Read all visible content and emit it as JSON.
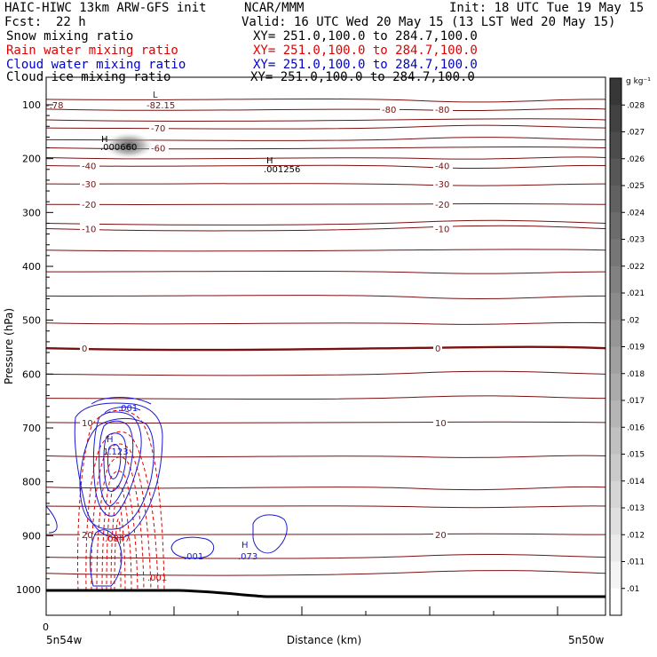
{
  "header": {
    "model": "HAIC-HIWC 13km ARW-GFS init",
    "org": "NCAR/MMM",
    "init": "Init: 18 UTC Tue 19 May 15",
    "fcst_label": "Fcst:",
    "fcst_value": "22 h",
    "valid": "Valid: 16 UTC Wed 20 May 15 (13 LST Wed 20 May 15)"
  },
  "fields": [
    {
      "name": "Snow mixing ratio",
      "xy": "XY= 251.0,100.0 to 284.7,100.0",
      "color": "#000000"
    },
    {
      "name": "Rain water mixing ratio",
      "xy": "XY= 251.0,100.0 to 284.7,100.0",
      "color": "#e00000"
    },
    {
      "name": "Cloud water mixing ratio",
      "xy": "XY= 251.0,100.0 to 284.7,100.0",
      "color": "#0000cc"
    },
    {
      "name": "Cloud ice mixing ratio",
      "xy": "XY= 251.0,100.0 to 284.7,100.0",
      "color": "#000000"
    }
  ],
  "colors": {
    "temperature": "#7a1010",
    "cloud_water": "#1a1ad0",
    "rain": "#e00000",
    "ground": "#000000"
  },
  "chart_data": {
    "type": "cross-section",
    "ylabel": "Pressure (hPa)",
    "xlabel": "Distance (km)",
    "y_ticks": [
      "100",
      "200",
      "300",
      "400",
      "500",
      "600",
      "700",
      "800",
      "900",
      "1000"
    ],
    "x_tick_zero": "0",
    "x_start_label": "5n54w",
    "x_end_label": "5n50w",
    "ylim": [
      1050,
      85
    ],
    "ground_pressure": {
      "left": 1000,
      "right": 1010
    },
    "isotherms": [
      {
        "p": 90,
        "labels": []
      },
      {
        "p": 108,
        "labels": [
          "-80",
          "-80"
        ]
      },
      {
        "p": 128,
        "labels": []
      },
      {
        "p": 143,
        "labels": [
          "-70"
        ]
      },
      {
        "p": 165,
        "labels": []
      },
      {
        "p": 180,
        "labels": [
          "-60"
        ]
      },
      {
        "p": 198,
        "labels": []
      },
      {
        "p": 213,
        "labels": [
          "-40",
          "-40"
        ]
      },
      {
        "p": 247,
        "labels": [
          "-30",
          "-30"
        ]
      },
      {
        "p": 285,
        "labels": [
          "-20",
          "-20"
        ]
      },
      {
        "p": 320,
        "labels": []
      },
      {
        "p": 330,
        "labels": [
          "-10",
          "-10"
        ]
      },
      {
        "p": 370,
        "labels": []
      },
      {
        "p": 410,
        "labels": []
      },
      {
        "p": 455,
        "labels": []
      },
      {
        "p": 505,
        "labels": []
      },
      {
        "p": 552,
        "labels": [
          "0",
          "0"
        ]
      },
      {
        "p": 600,
        "labels": []
      },
      {
        "p": 645,
        "labels": []
      },
      {
        "p": 690,
        "labels": [
          "10",
          "10"
        ]
      },
      {
        "p": 752,
        "labels": []
      },
      {
        "p": 810,
        "labels": []
      },
      {
        "p": 845,
        "labels": []
      },
      {
        "p": 898,
        "labels": [
          "20",
          "20"
        ]
      },
      {
        "p": 940,
        "labels": []
      },
      {
        "p": 970,
        "labels": []
      }
    ],
    "annotations": [
      {
        "text": "L",
        "kind": "low-label"
      },
      {
        "text": "-82.15",
        "kind": "extreme"
      },
      {
        "text": "H",
        "kind": "high-label"
      },
      {
        "text": ".000660",
        "kind": "extreme"
      },
      {
        "text": "H",
        "kind": "high-label"
      },
      {
        "text": ".001256",
        "kind": "extreme"
      },
      {
        "text": "-.78",
        "kind": "extreme"
      },
      {
        "text": "H",
        "kind": "high-label"
      },
      {
        "text": "1.123",
        "kind": "extreme"
      },
      {
        "text": ".001",
        "kind": "cloud-water"
      },
      {
        "text": ".0847",
        "kind": "rain"
      },
      {
        "text": ".001",
        "kind": "rain"
      },
      {
        "text": ".001",
        "kind": "cloud-water"
      },
      {
        "text": "H",
        "kind": "high-label"
      },
      {
        "text": ".073",
        "kind": "cloud-water"
      }
    ],
    "colorbar": {
      "unit": "g kg⁻¹",
      "levels": [
        ".028",
        ".027",
        ".026",
        ".025",
        ".024",
        ".023",
        ".022",
        ".021",
        ".02",
        ".019",
        ".018",
        ".017",
        ".016",
        ".015",
        ".014",
        ".013",
        ".012",
        ".011",
        ".01"
      ]
    }
  }
}
